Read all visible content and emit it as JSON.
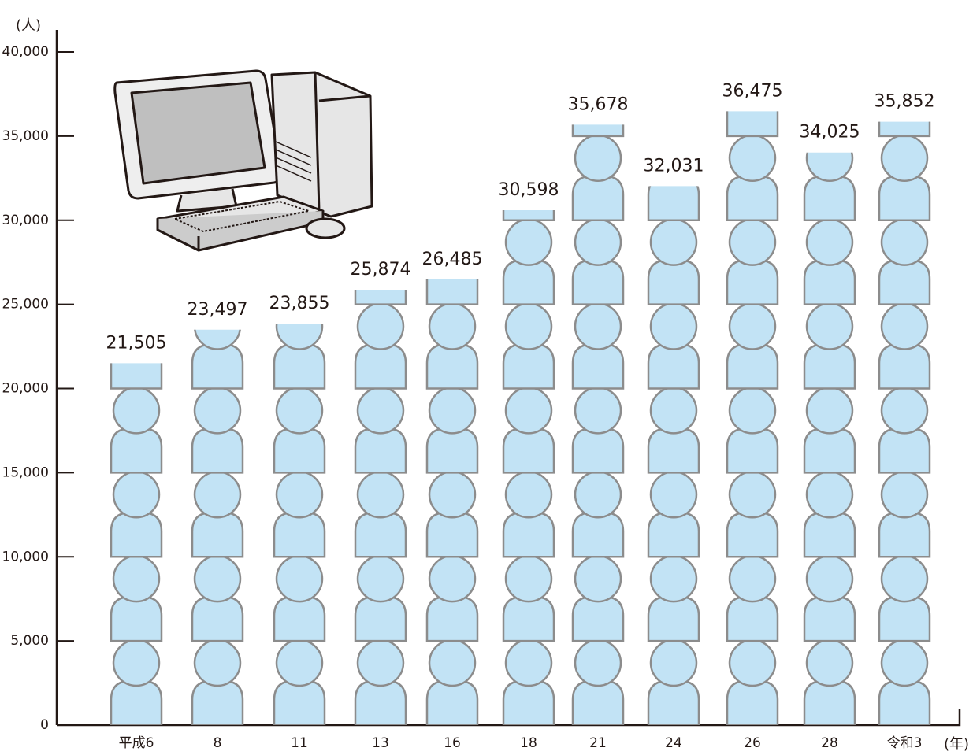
{
  "chart_data": {
    "type": "pictograph",
    "y_label": "(人)",
    "x_label": "(年)",
    "categories": [
      "平成6",
      "8",
      "11",
      "13",
      "16",
      "18",
      "21",
      "24",
      "26",
      "28",
      "令和3"
    ],
    "values": [
      21505,
      23497,
      23855,
      25874,
      26485,
      30598,
      35678,
      32031,
      36475,
      34025,
      35852
    ],
    "value_labels": [
      "21,505",
      "23,497",
      "23,855",
      "25,874",
      "26,485",
      "30,598",
      "35,678",
      "32,031",
      "36,475",
      "34,025",
      "35,852"
    ],
    "icon_value": 5000,
    "color": "#c2e3f5",
    "ylim": [
      0,
      40000
    ],
    "yticks": [
      0,
      {
        "value": 5000,
        "label": "5,000"
      },
      {
        "value": 10000,
        "label": "10,000"
      },
      {
        "value": 15000,
        "label": "15,000"
      },
      {
        "value": 20000,
        "label": "20,000"
      },
      {
        "value": 25000,
        "label": "25,000"
      },
      {
        "value": 30000,
        "label": "30,000"
      },
      {
        "value": 35000,
        "label": "35,000"
      },
      {
        "value": 40000,
        "label": "40,000"
      }
    ]
  }
}
